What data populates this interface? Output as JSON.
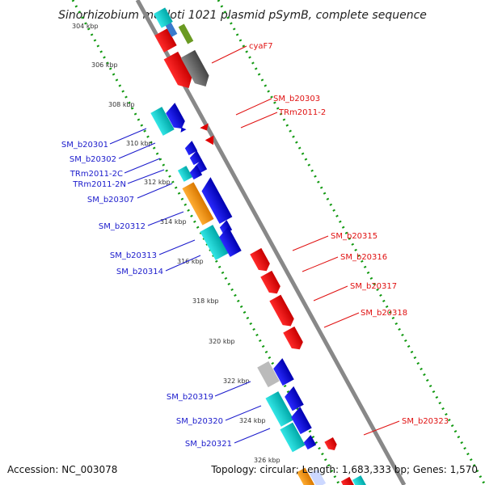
{
  "title": "Sinorhizobium meliloti 1021 plasmid pSymB, complete sequence",
  "footer": {
    "accession": "Accession: NC_003078",
    "topology": "Topology: circular; Length: 1,683,333 bp; Genes: 1,570"
  },
  "ticks": [
    "304 kbp",
    "306 kbp",
    "308 kbp",
    "310 kbp",
    "312 kbp",
    "314 kbp",
    "316 kbp",
    "318 kbp",
    "320 kbp",
    "322 kbp",
    "324 kbp",
    "326 kbp"
  ],
  "labels": {
    "cyaF7": "cyaF7",
    "SM_b20303": "SM_b20303",
    "TRm2011_2": "TRm2011-2",
    "SM_b20301": "SM_b20301",
    "SM_b20302": "SM_b20302",
    "TRm2011_2C": "TRm2011-2C",
    "TRm2011_2N": "TRm2011-2N",
    "SM_b20307": "SM_b20307",
    "SM_b20312": "SM_b20312",
    "SM_b20313": "SM_b20313",
    "SM_b20314": "SM_b20314",
    "SM_b20315": "SM_b20315",
    "SM_b20316": "SM_b20316",
    "SM_b20317": "SM_b20317",
    "SM_b20318": "SM_b20318",
    "SM_b20319": "SM_b20319",
    "SM_b20320": "SM_b20320",
    "SM_b20321": "SM_b20321",
    "SM_b20323": "SM_b20323"
  },
  "colors": {
    "forward_gene": "#ff0000",
    "reverse_gene": "#0000ff",
    "rna": "#00cccc",
    "orange_feature": "#ff9900",
    "gray_feature": "#666666",
    "light_gray_feature": "#bbbbbb",
    "backbone": "#888888",
    "tick_dots": "#119911",
    "label_blue": "#1a1acc",
    "label_red": "#e01010"
  }
}
